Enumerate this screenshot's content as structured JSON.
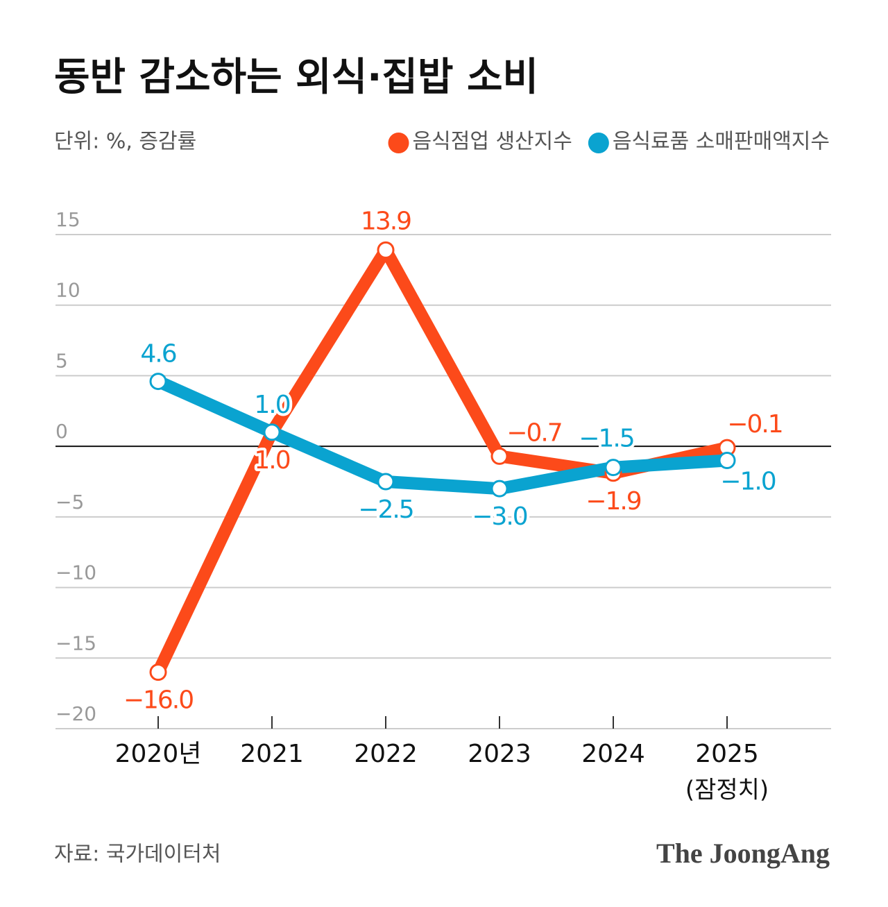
{
  "chart_data": {
    "type": "line",
    "title": "동반 감소하는 외식·집밥 소비",
    "subtitle": "단위: %, 증감률",
    "categories": [
      "2020년",
      "2021",
      "2022",
      "2023",
      "2024",
      "2025"
    ],
    "category_note": "(잠정치)",
    "series": [
      {
        "name": "음식점업 생산지수",
        "color": "#fc4a1a",
        "values": [
          -16.0,
          1.0,
          13.9,
          -0.7,
          -1.9,
          -0.1
        ],
        "value_labels": [
          "−16.0",
          "1.0",
          "13.9",
          "−0.7",
          "−1.9",
          "−0.1"
        ]
      },
      {
        "name": "음식료품 소매판매액지수",
        "color": "#0aa3d0",
        "values": [
          4.6,
          1.0,
          -2.5,
          -3.0,
          -1.5,
          -1.0
        ],
        "value_labels": [
          "4.6",
          "1.0",
          "−2.5",
          "−3.0",
          "−1.5",
          "−1.0"
        ]
      }
    ],
    "ylim": [
      -20,
      15
    ],
    "yticks": [
      {
        "value": -20,
        "label": "−20"
      },
      {
        "value": -15,
        "label": "−15"
      },
      {
        "value": -10,
        "label": "−10"
      },
      {
        "value": -5,
        "label": "−5"
      },
      0,
      5,
      10,
      15
    ],
    "grid": true,
    "legend": "top",
    "source": "자료: 국가데이터처",
    "brand": "The JoongAng"
  }
}
